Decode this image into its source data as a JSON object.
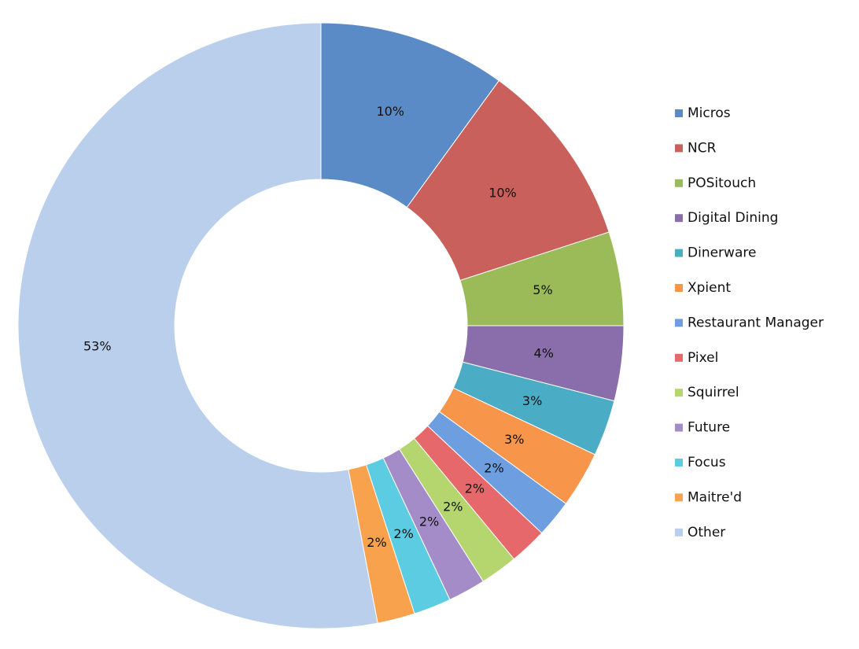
{
  "chart_data": {
    "type": "donut",
    "categories": [
      "Micros",
      "NCR",
      "POSitouch",
      "Digital Dining",
      "Dinerware",
      "Xpient",
      "Restaurant Manager",
      "Pixel",
      "Squirrel",
      "Future",
      "Focus",
      "Maitre'd",
      "Other"
    ],
    "values": [
      10,
      10,
      5,
      4,
      3,
      3,
      2,
      2,
      2,
      2,
      2,
      2,
      53
    ],
    "value_labels": [
      "10%",
      "10%",
      "5%",
      "4%",
      "3%",
      "3%",
      "2%",
      "2%",
      "2%",
      "2%",
      "2%",
      "2%",
      "53%"
    ],
    "colors": [
      "#5b8bc6",
      "#c9605c",
      "#9bbb59",
      "#8a6dab",
      "#4bacc6",
      "#f7964a",
      "#6c9ee0",
      "#e6686a",
      "#b5d56e",
      "#a48cc9",
      "#5ccce3",
      "#f9a24e",
      "#b9cfeb"
    ],
    "legend": "right"
  }
}
